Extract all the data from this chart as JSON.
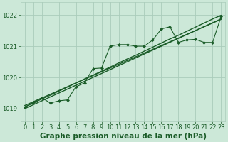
{
  "title": "Graphe pression niveau de la mer (hPa)",
  "bg_color": "#cce8d8",
  "grid_color": "#aaccbb",
  "line_color": "#1a5c28",
  "xlim": [
    -0.5,
    23.5
  ],
  "ylim": [
    1018.6,
    1022.4
  ],
  "yticks": [
    1019,
    1020,
    1021,
    1022
  ],
  "xticks": [
    0,
    1,
    2,
    3,
    4,
    5,
    6,
    7,
    8,
    9,
    10,
    11,
    12,
    13,
    14,
    15,
    16,
    17,
    18,
    19,
    20,
    21,
    22,
    23
  ],
  "hours": [
    0,
    1,
    2,
    3,
    4,
    5,
    6,
    7,
    8,
    9,
    10,
    11,
    12,
    13,
    14,
    15,
    16,
    17,
    18,
    19,
    20,
    21,
    22,
    23
  ],
  "pressure": [
    1019.05,
    1019.2,
    1019.35,
    1019.18,
    1019.25,
    1019.28,
    1019.7,
    1019.82,
    1020.28,
    1020.3,
    1021.0,
    1021.05,
    1021.05,
    1021.0,
    1021.0,
    1021.2,
    1021.55,
    1021.62,
    1021.12,
    1021.2,
    1021.22,
    1021.12,
    1021.12,
    1021.95
  ],
  "reg_line_a": [
    1019.05,
    1019.18,
    1019.31,
    1019.43,
    1019.56,
    1019.69,
    1019.82,
    1019.95,
    1020.07,
    1020.2,
    1020.33,
    1020.46,
    1020.59,
    1020.71,
    1020.84,
    1020.97,
    1021.1,
    1021.23,
    1021.35,
    1021.48,
    1021.61,
    1021.74,
    1021.87,
    1021.99
  ],
  "reg_line_b": [
    1019.0,
    1019.125,
    1019.25,
    1019.375,
    1019.5,
    1019.625,
    1019.75,
    1019.875,
    1020.0,
    1020.125,
    1020.25,
    1020.375,
    1020.5,
    1020.625,
    1020.75,
    1020.875,
    1021.0,
    1021.125,
    1021.25,
    1021.375,
    1021.5,
    1021.625,
    1021.75,
    1021.875
  ],
  "reg_line_c": [
    1019.1,
    1019.22,
    1019.34,
    1019.46,
    1019.58,
    1019.7,
    1019.82,
    1019.94,
    1020.06,
    1020.18,
    1020.3,
    1020.42,
    1020.54,
    1020.66,
    1020.78,
    1020.9,
    1021.02,
    1021.14,
    1021.26,
    1021.38,
    1021.5,
    1021.62,
    1021.74,
    1021.86
  ],
  "title_fontsize": 7.5,
  "tick_fontsize": 6
}
